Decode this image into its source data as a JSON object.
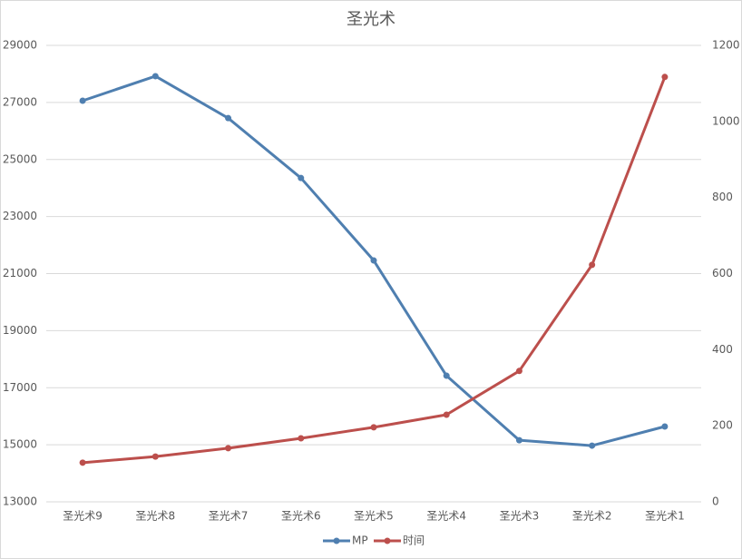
{
  "chart_data": {
    "type": "line",
    "title": "圣光术",
    "categories": [
      "圣光术9",
      "圣光术8",
      "圣光术7",
      "圣光术6",
      "圣光术5",
      "圣光术4",
      "圣光术3",
      "圣光术2",
      "圣光术1"
    ],
    "series": [
      {
        "name": "MP",
        "color": "#4f7fb0",
        "values": [
          27060,
          27920,
          26450,
          24350,
          21460,
          17420,
          15160,
          14970,
          15640
        ]
      },
      {
        "name": "时间",
        "color": "#bc4f4c",
        "axis": "y2",
        "values": [
          103,
          119,
          141,
          167,
          196,
          229,
          344,
          623,
          1117
        ]
      }
    ],
    "ylim": [
      13000,
      29000
    ],
    "yticks": [
      13000,
      15000,
      17000,
      19000,
      21000,
      23000,
      25000,
      27000,
      29000
    ],
    "y2lim": [
      0,
      1200
    ],
    "y2ticks": [
      0,
      200,
      400,
      600,
      800,
      1000,
      1200
    ],
    "grid": true,
    "legend": "bottom"
  }
}
